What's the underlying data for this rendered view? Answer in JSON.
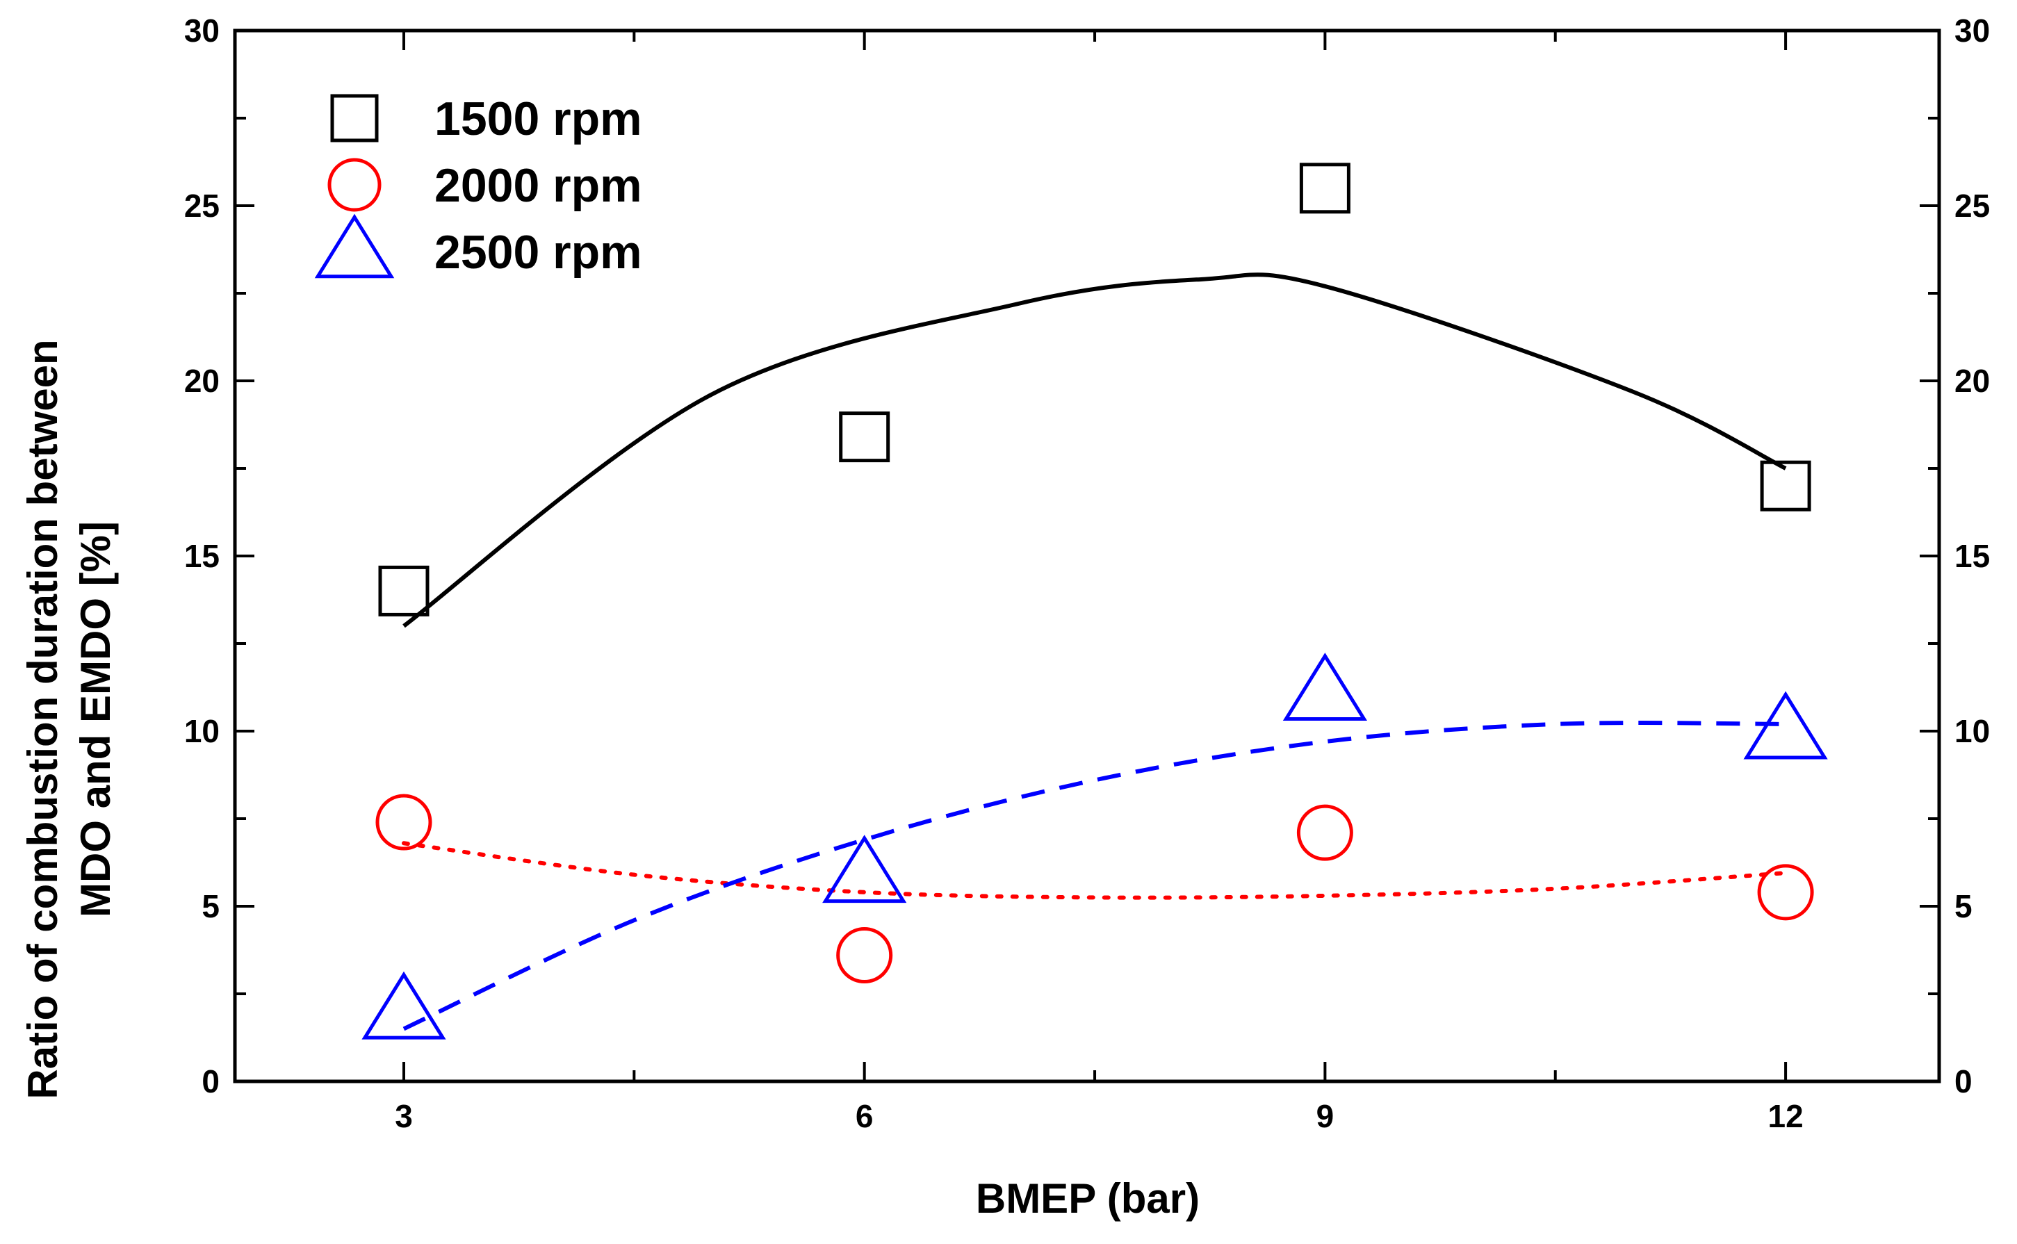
{
  "chart_data": {
    "type": "scatter",
    "xlabel": "BMEP (bar)",
    "ylabel_lines": [
      "Ratio of combustion duration between",
      "MDO and EMDO [%]"
    ],
    "xlim": [
      1.9,
      13.0
    ],
    "ylim": [
      0,
      30
    ],
    "x_ticks": [
      3,
      6,
      9,
      12
    ],
    "x_tick_labels": [
      "3",
      "6",
      "9",
      "12"
    ],
    "y_ticks": [
      0,
      5,
      10,
      15,
      20,
      25,
      30
    ],
    "y_tick_labels": [
      "0",
      "5",
      "10",
      "15",
      "20",
      "25",
      "30"
    ],
    "right_axis_mirror": true,
    "legend_position": "top-left",
    "series": [
      {
        "name": "1500 rpm",
        "marker": "square",
        "color": "#000000",
        "fit_style": "solid",
        "x": [
          3,
          6,
          9,
          12
        ],
        "y": [
          14.0,
          18.4,
          25.5,
          17.0
        ],
        "fit": {
          "x": [
            3,
            5,
            7,
            8.2,
            9,
            11,
            12
          ],
          "y": [
            13.0,
            19.6,
            22.2,
            22.9,
            22.7,
            19.7,
            17.5
          ]
        }
      },
      {
        "name": "2000 rpm",
        "marker": "circle",
        "color": "#ff0000",
        "fit_style": "dotted",
        "x": [
          3,
          6,
          9,
          12
        ],
        "y": [
          7.4,
          3.6,
          7.1,
          5.4
        ],
        "fit": {
          "x": [
            3,
            4.5,
            6,
            7.5,
            9,
            10.5,
            12
          ],
          "y": [
            6.8,
            5.9,
            5.4,
            5.25,
            5.3,
            5.5,
            5.95
          ]
        }
      },
      {
        "name": "2500 rpm",
        "marker": "triangle",
        "color": "#0000ff",
        "fit_style": "dashed",
        "x": [
          3,
          6,
          9,
          12
        ],
        "y": [
          2.0,
          5.9,
          11.1,
          10.0
        ],
        "fit": {
          "x": [
            3,
            4.5,
            6,
            7.5,
            9,
            10.5,
            12
          ],
          "y": [
            1.5,
            4.6,
            6.9,
            8.6,
            9.7,
            10.2,
            10.2
          ]
        }
      }
    ]
  }
}
